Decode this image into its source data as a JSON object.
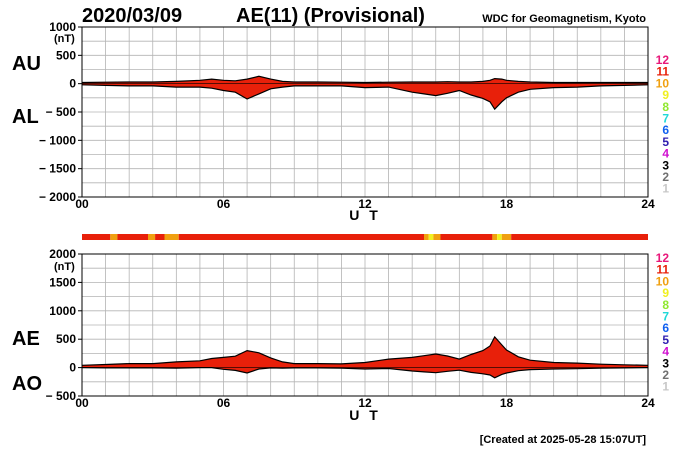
{
  "header": {
    "date": "2020/03/09",
    "title": "AE(11) (Provisional)",
    "credit": "WDC for Geomagnetism, Kyoto"
  },
  "footer": {
    "created": "[Created at 2025-05-28 15:07UT]"
  },
  "legend_levels": [
    {
      "label": "12",
      "color": "#e8187a"
    },
    {
      "label": "11",
      "color": "#e8200a"
    },
    {
      "label": "10",
      "color": "#f0a010"
    },
    {
      "label": "9",
      "color": "#f0f020"
    },
    {
      "label": "8",
      "color": "#90e830"
    },
    {
      "label": "7",
      "color": "#20d8d8"
    },
    {
      "label": "6",
      "color": "#1060f0"
    },
    {
      "label": "5",
      "color": "#3020b0"
    },
    {
      "label": "4",
      "color": "#d010d0"
    },
    {
      "label": "3",
      "color": "#000000"
    },
    {
      "label": "2",
      "color": "#707070"
    },
    {
      "label": "1",
      "color": "#c8c8c8"
    }
  ],
  "colors": {
    "fill_main": "#e8200a",
    "fill_alt": "#f0a010",
    "fill_hi": "#f0f020",
    "grid": "#b4b4b4"
  },
  "chart_data": [
    {
      "type": "area",
      "name": "AU/AL",
      "upper_label": "AU",
      "lower_label": "AL",
      "unit_label": "(nT)",
      "ylim": [
        -2000,
        1000
      ],
      "y_ticks": [
        1000,
        500,
        0,
        -500,
        -1000,
        -1500,
        -2000
      ],
      "y_tick_labels": [
        "1000",
        "500",
        "0",
        "− 500",
        "− 1000",
        "− 1500",
        "− 2000"
      ],
      "xlim": [
        0,
        24
      ],
      "x_ticks": [
        0,
        6,
        12,
        18,
        24
      ],
      "x_tick_labels": [
        "00",
        "06",
        "12",
        "18",
        "24"
      ],
      "xlabel": "U T",
      "upper_series": {
        "name": "AU",
        "x": [
          0,
          1,
          2,
          3,
          4,
          5,
          5.5,
          6,
          6.5,
          7,
          7.5,
          8,
          8.5,
          9,
          10,
          11,
          12,
          13,
          14,
          14.5,
          15,
          15.5,
          16,
          16.5,
          17,
          17.3,
          17.5,
          17.8,
          18,
          18.5,
          19,
          20,
          21,
          22,
          23,
          24
        ],
        "values": [
          20,
          25,
          30,
          30,
          40,
          60,
          80,
          60,
          50,
          80,
          130,
          80,
          40,
          30,
          30,
          25,
          20,
          25,
          30,
          30,
          30,
          35,
          30,
          30,
          40,
          60,
          90,
          80,
          60,
          40,
          30,
          20,
          20,
          20,
          20,
          20
        ]
      },
      "lower_series": {
        "name": "AL",
        "x": [
          0,
          1,
          2,
          3,
          4,
          5,
          5.5,
          6,
          6.5,
          7,
          7.5,
          8,
          8.5,
          9,
          10,
          11,
          12,
          13,
          14,
          14.5,
          15,
          15.5,
          16,
          16.5,
          17,
          17.3,
          17.5,
          17.8,
          18,
          18.5,
          19,
          20,
          21,
          22,
          23,
          24
        ],
        "values": [
          -20,
          -30,
          -40,
          -40,
          -60,
          -60,
          -80,
          -120,
          -150,
          -270,
          -180,
          -90,
          -60,
          -40,
          -40,
          -40,
          -70,
          -60,
          -150,
          -180,
          -210,
          -170,
          -120,
          -200,
          -260,
          -320,
          -450,
          -320,
          -250,
          -150,
          -100,
          -70,
          -60,
          -40,
          -30,
          -20
        ]
      }
    },
    {
      "type": "area",
      "name": "AE/AO",
      "upper_label": "AE",
      "lower_label": "AO",
      "unit_label": "(nT)",
      "ylim": [
        -500,
        2000
      ],
      "y_ticks": [
        2000,
        1500,
        1000,
        500,
        0,
        -500
      ],
      "y_tick_labels": [
        "2000",
        "1500",
        "1000",
        "500",
        "0",
        "− 500"
      ],
      "xlim": [
        0,
        24
      ],
      "x_ticks": [
        0,
        6,
        12,
        18,
        24
      ],
      "x_tick_labels": [
        "00",
        "06",
        "12",
        "18",
        "24"
      ],
      "xlabel": "U T",
      "upper_series": {
        "name": "AE",
        "x": [
          0,
          1,
          2,
          3,
          4,
          5,
          5.5,
          6,
          6.5,
          7,
          7.5,
          8,
          8.5,
          9,
          10,
          11,
          12,
          13,
          14,
          14.5,
          15,
          15.5,
          16,
          16.5,
          17,
          17.3,
          17.5,
          17.8,
          18,
          18.5,
          19,
          20,
          21,
          22,
          23,
          24
        ],
        "values": [
          40,
          55,
          70,
          70,
          100,
          120,
          160,
          180,
          200,
          300,
          260,
          170,
          100,
          70,
          70,
          65,
          90,
          150,
          180,
          210,
          240,
          205,
          150,
          230,
          300,
          380,
          540,
          400,
          310,
          190,
          130,
          90,
          80,
          60,
          50,
          40
        ]
      },
      "lower_series": {
        "name": "AO",
        "x": [
          0,
          1,
          2,
          3,
          4,
          5,
          5.5,
          6,
          6.5,
          7,
          7.5,
          8,
          8.5,
          9,
          10,
          11,
          12,
          13,
          14,
          14.5,
          15,
          15.5,
          16,
          16.5,
          17,
          17.3,
          17.5,
          17.8,
          18,
          18.5,
          19,
          20,
          21,
          22,
          23,
          24
        ],
        "values": [
          0,
          -5,
          -5,
          -5,
          -10,
          0,
          0,
          -30,
          -50,
          -95,
          -25,
          -5,
          -10,
          -5,
          -5,
          -8,
          -25,
          -15,
          -60,
          -75,
          -90,
          -65,
          -45,
          -85,
          -110,
          -130,
          -180,
          -120,
          -95,
          -55,
          -35,
          -25,
          -20,
          -10,
          -5,
          0
        ]
      }
    }
  ],
  "activity_bar": {
    "segments": [
      [
        0,
        1.2,
        "main"
      ],
      [
        1.2,
        1.5,
        "alt"
      ],
      [
        1.5,
        2.8,
        "main"
      ],
      [
        2.8,
        3.1,
        "alt"
      ],
      [
        3.1,
        3.5,
        "main"
      ],
      [
        3.5,
        4.1,
        "alt"
      ],
      [
        4.1,
        14.5,
        "main"
      ],
      [
        14.5,
        14.7,
        "alt"
      ],
      [
        14.7,
        14.9,
        "hi"
      ],
      [
        14.9,
        15.2,
        "alt"
      ],
      [
        15.2,
        17.4,
        "main"
      ],
      [
        17.4,
        17.6,
        "alt"
      ],
      [
        17.6,
        17.8,
        "hi"
      ],
      [
        17.8,
        18.2,
        "alt"
      ],
      [
        18.2,
        24,
        "main"
      ]
    ]
  }
}
